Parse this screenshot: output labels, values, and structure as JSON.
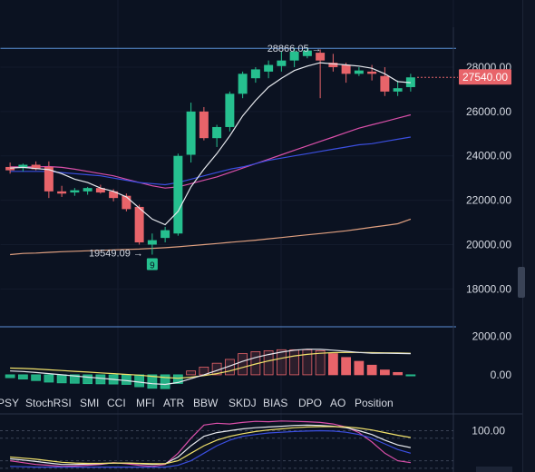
{
  "chart_data": [
    {
      "type": "candlestick",
      "title": "",
      "y_ticks": [
        "28000.00",
        "26000.00",
        "24000.00",
        "22000.00",
        "20000.00",
        "18000.00"
      ],
      "y_tick_values": [
        28000,
        26000,
        24000,
        22000,
        20000,
        18000
      ],
      "ylim": [
        16500,
        29800
      ],
      "current_price": "27540.00",
      "annotations": {
        "high_label": "28866.05 →",
        "low_label": "19549.09 →",
        "low_badge": "9"
      },
      "colors": {
        "up": "#26c08f",
        "down": "#e8646a"
      },
      "candles": [
        {
          "o": 23500,
          "h": 23700,
          "l": 23200,
          "c": 23350
        },
        {
          "o": 23450,
          "h": 23650,
          "l": 23300,
          "c": 23600
        },
        {
          "o": 23600,
          "h": 23750,
          "l": 23350,
          "c": 23400
        },
        {
          "o": 23500,
          "h": 23750,
          "l": 22100,
          "c": 22400
        },
        {
          "o": 22400,
          "h": 22650,
          "l": 22150,
          "c": 22300
        },
        {
          "o": 22350,
          "h": 22550,
          "l": 22200,
          "c": 22450
        },
        {
          "o": 22400,
          "h": 22600,
          "l": 22250,
          "c": 22550
        },
        {
          "o": 22550,
          "h": 22700,
          "l": 22300,
          "c": 22350
        },
        {
          "o": 22400,
          "h": 22500,
          "l": 21950,
          "c": 22100
        },
        {
          "o": 22200,
          "h": 22300,
          "l": 21500,
          "c": 21600
        },
        {
          "o": 21700,
          "h": 21800,
          "l": 20000,
          "c": 20100
        },
        {
          "o": 20000,
          "h": 20500,
          "l": 19549,
          "c": 20200
        },
        {
          "o": 20300,
          "h": 20800,
          "l": 20100,
          "c": 20650
        },
        {
          "o": 20500,
          "h": 24100,
          "l": 20400,
          "c": 24000
        },
        {
          "o": 24050,
          "h": 26400,
          "l": 23700,
          "c": 26000
        },
        {
          "o": 26000,
          "h": 26200,
          "l": 24700,
          "c": 24800
        },
        {
          "o": 24800,
          "h": 25400,
          "l": 24400,
          "c": 25300
        },
        {
          "o": 25300,
          "h": 26900,
          "l": 25100,
          "c": 26800
        },
        {
          "o": 26800,
          "h": 27800,
          "l": 26600,
          "c": 27700
        },
        {
          "o": 27500,
          "h": 28000,
          "l": 27300,
          "c": 27900
        },
        {
          "o": 27800,
          "h": 28300,
          "l": 27500,
          "c": 28100
        },
        {
          "o": 28050,
          "h": 28700,
          "l": 27800,
          "c": 28300
        },
        {
          "o": 28300,
          "h": 28866,
          "l": 28000,
          "c": 28700
        },
        {
          "o": 28500,
          "h": 28900,
          "l": 28400,
          "c": 28750
        },
        {
          "o": 28650,
          "h": 28800,
          "l": 26600,
          "c": 28300
        },
        {
          "o": 28200,
          "h": 28600,
          "l": 27800,
          "c": 28000
        },
        {
          "o": 28100,
          "h": 28200,
          "l": 27300,
          "c": 27700
        },
        {
          "o": 27700,
          "h": 28000,
          "l": 27600,
          "c": 27850
        },
        {
          "o": 27800,
          "h": 28100,
          "l": 27400,
          "c": 27700
        },
        {
          "o": 27600,
          "h": 28000,
          "l": 26700,
          "c": 26900
        },
        {
          "o": 26900,
          "h": 27400,
          "l": 26700,
          "c": 27050
        },
        {
          "o": 27100,
          "h": 27700,
          "l": 26900,
          "c": 27540
        }
      ],
      "lines": [
        {
          "name": "",
          "color": "#e7e9ee",
          "values": [
            23450,
            23480,
            23430,
            23380,
            23200,
            22950,
            22800,
            22550,
            22400,
            22150,
            21650,
            21150,
            20900,
            21500,
            22600,
            23400,
            24100,
            24900,
            25800,
            26500,
            27100,
            27500,
            27850,
            28050,
            28200,
            28150,
            28100,
            28050,
            27950,
            27700,
            27350,
            27300
          ]
        },
        {
          "name": "",
          "color": "#d94fa9",
          "values": [
            23500,
            23500,
            23500,
            23520,
            23480,
            23400,
            23300,
            23200,
            23100,
            22950,
            22800,
            22650,
            22550,
            22600,
            22750,
            22900,
            23050,
            23250,
            23450,
            23650,
            23850,
            24050,
            24250,
            24450,
            24650,
            24850,
            25050,
            25250,
            25400,
            25550,
            25700,
            25850
          ]
        },
        {
          "name": "",
          "color": "#3b4fe0",
          "values": [
            23300,
            23300,
            23300,
            23300,
            23250,
            23200,
            23150,
            23100,
            23000,
            22900,
            22800,
            22750,
            22700,
            22800,
            22950,
            23100,
            23250,
            23400,
            23500,
            23650,
            23800,
            23900,
            24000,
            24100,
            24200,
            24300,
            24400,
            24500,
            24550,
            24650,
            24750,
            24850
          ]
        },
        {
          "name": "",
          "color": "#e0a080",
          "values": [
            19550,
            19600,
            19620,
            19650,
            19680,
            19700,
            19720,
            19740,
            19760,
            19780,
            19800,
            19830,
            19860,
            19900,
            19950,
            20000,
            20050,
            20100,
            20150,
            20200,
            20260,
            20320,
            20380,
            20440,
            20500,
            20560,
            20620,
            20700,
            20780,
            20860,
            20940,
            21150
          ]
        }
      ],
      "hlines": [
        28850,
        16400
      ]
    },
    {
      "type": "histogram",
      "y_ticks": [
        "2000.00",
        "0.00"
      ],
      "y_tick_values": [
        2000,
        0
      ],
      "ylim": [
        -900,
        2400
      ],
      "values": [
        -150,
        -220,
        -300,
        -380,
        -420,
        -440,
        -460,
        -470,
        -480,
        -500,
        -620,
        -700,
        -720,
        -450,
        200,
        400,
        600,
        800,
        1100,
        1200,
        1250,
        1300,
        1300,
        1300,
        1250,
        1100,
        900,
        700,
        500,
        250,
        120,
        -40
      ],
      "lines": [
        {
          "name": "",
          "color": "#f2e26b",
          "values": [
            350,
            330,
            300,
            260,
            220,
            180,
            140,
            100,
            60,
            20,
            -20,
            -80,
            -140,
            -180,
            -120,
            -40,
            60,
            200,
            380,
            560,
            720,
            860,
            980,
            1060,
            1120,
            1150,
            1160,
            1160,
            1150,
            1140,
            1130,
            1120
          ]
        },
        {
          "name": "",
          "color": "#e7e9ee",
          "values": [
            200,
            170,
            120,
            60,
            0,
            -60,
            -120,
            -180,
            -240,
            -300,
            -380,
            -460,
            -500,
            -400,
            -200,
            0,
            220,
            460,
            700,
            900,
            1050,
            1180,
            1280,
            1330,
            1320,
            1280,
            1220,
            1160,
            1120,
            1120,
            1110,
            1100
          ]
        }
      ]
    },
    {
      "type": "line",
      "y_ticks": [
        "100.00"
      ],
      "y_tick_values": [
        100
      ],
      "ylim": [
        -10,
        140
      ],
      "lines": [
        {
          "name": "",
          "color": "#d94fa9",
          "values": [
            20,
            15,
            10,
            8,
            5,
            6,
            8,
            10,
            15,
            12,
            8,
            5,
            10,
            40,
            80,
            115,
            120,
            118,
            122,
            125,
            124,
            126,
            125,
            124,
            122,
            118,
            110,
            95,
            70,
            40,
            20,
            15
          ]
        },
        {
          "name": "",
          "color": "#e7e9ee",
          "values": [
            25,
            22,
            18,
            14,
            10,
            10,
            11,
            12,
            14,
            14,
            12,
            10,
            12,
            30,
            60,
            85,
            95,
            100,
            105,
            108,
            110,
            112,
            114,
            115,
            114,
            112,
            108,
            100,
            90,
            75,
            62,
            55
          ]
        },
        {
          "name": "",
          "color": "#f2e26b",
          "values": [
            30,
            27,
            24,
            20,
            16,
            14,
            13,
            13,
            14,
            14,
            13,
            12,
            12,
            20,
            40,
            60,
            75,
            85,
            92,
            98,
            102,
            105,
            108,
            110,
            111,
            111,
            110,
            107,
            102,
            95,
            88,
            82
          ]
        },
        {
          "name": "",
          "color": "#3b4fe0",
          "values": [
            5,
            4,
            3,
            3,
            3,
            3,
            3,
            3,
            3,
            3,
            3,
            3,
            3,
            8,
            20,
            40,
            60,
            75,
            85,
            90,
            94,
            96,
            98,
            99,
            100,
            99,
            96,
            90,
            80,
            65,
            50,
            40
          ]
        }
      ]
    }
  ],
  "indicator_tabs": [
    "PSY",
    "StochRSI",
    "SMI",
    "CCI",
    "MFI",
    "ATR",
    "BBW",
    "SKDJ",
    "BIAS",
    "DPO",
    "AO",
    "Position"
  ]
}
